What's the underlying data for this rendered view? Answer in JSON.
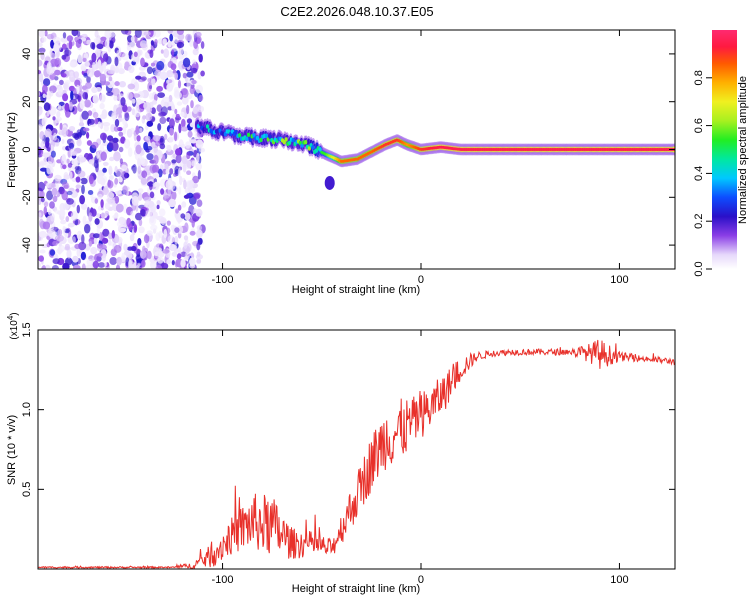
{
  "figure": {
    "title": "C2E2.2026.048.10.37.E05"
  },
  "chart_data": [
    {
      "type": "heatmap",
      "xlabel": "Height of straight line (km)",
      "ylabel": "Frequency (Hz)",
      "xlim": [
        -193,
        128
      ],
      "ylim": [
        -50,
        50
      ],
      "xticks": [
        -100,
        0,
        100
      ],
      "xtick_labels": [
        "-100",
        "0",
        "100"
      ],
      "yticks": [
        -40,
        -20,
        0,
        20,
        40
      ],
      "ytick_labels": [
        "-40",
        "-20",
        "0",
        "20",
        "40"
      ],
      "noise_region_x": [
        -193,
        -113
      ],
      "ridge": {
        "x": [
          -113,
          -100,
          -85,
          -70,
          -58,
          -48,
          -40,
          -32,
          -25,
          -18,
          -12,
          -7,
          0,
          10,
          20,
          40,
          80,
          128
        ],
        "y": [
          10,
          7,
          5,
          4,
          2,
          -2,
          -5,
          -4,
          -1,
          2,
          4,
          2,
          0,
          1,
          0,
          0,
          0,
          0
        ],
        "amplitude": [
          0.3,
          0.35,
          0.4,
          0.45,
          0.45,
          0.55,
          0.85,
          0.85,
          0.85,
          0.9,
          0.9,
          0.8,
          0.9,
          0.95,
          0.95,
          0.95,
          0.95,
          0.95
        ]
      },
      "spot": {
        "x": -46,
        "y": -14,
        "amplitude": 0.2
      },
      "colorbar": {
        "label": "Normalized spectral amplitude",
        "range": [
          0,
          1
        ],
        "ticks": [
          0.0,
          0.2,
          0.4,
          0.6,
          0.8
        ],
        "tick_labels": [
          "0.0",
          "0.2",
          "0.4",
          "0.6",
          "0.8"
        ]
      }
    },
    {
      "type": "line",
      "xlabel": "Height of straight line (km)",
      "ylabel": "SNR (10 * v/v)",
      "yscale_label": "(x10",
      "yscale_exponent": "4",
      "yscale_close": ")",
      "xlim": [
        -193,
        128
      ],
      "ylim": [
        0,
        1.5
      ],
      "xticks": [
        -100,
        0,
        100
      ],
      "xtick_labels": [
        "-100",
        "0",
        "100"
      ],
      "yticks": [
        0.5,
        1.0,
        1.5
      ],
      "ytick_labels": [
        "0.5",
        "1.0",
        "1.5"
      ],
      "color": "#e8302a",
      "series": {
        "x": [
          -193,
          -150,
          -125,
          -115,
          -105,
          -95,
          -85,
          -75,
          -65,
          -55,
          -45,
          -38,
          -32,
          -25,
          -18,
          -10,
          -3,
          5,
          12,
          20,
          28,
          35,
          45,
          60,
          75,
          85,
          90,
          100,
          110,
          128
        ],
        "y": [
          0.01,
          0.01,
          0.01,
          0.02,
          0.08,
          0.2,
          0.28,
          0.25,
          0.15,
          0.15,
          0.12,
          0.3,
          0.45,
          0.65,
          0.8,
          0.85,
          0.92,
          1.0,
          1.1,
          1.25,
          1.33,
          1.35,
          1.36,
          1.36,
          1.36,
          1.35,
          1.34,
          1.33,
          1.32,
          1.3
        ],
        "noise": [
          0.005,
          0.005,
          0.005,
          0.02,
          0.08,
          0.12,
          0.18,
          0.2,
          0.1,
          0.08,
          0.06,
          0.12,
          0.15,
          0.18,
          0.2,
          0.2,
          0.15,
          0.14,
          0.12,
          0.08,
          0.03,
          0.02,
          0.02,
          0.02,
          0.02,
          0.06,
          0.1,
          0.03,
          0.02,
          0.02
        ]
      }
    }
  ]
}
